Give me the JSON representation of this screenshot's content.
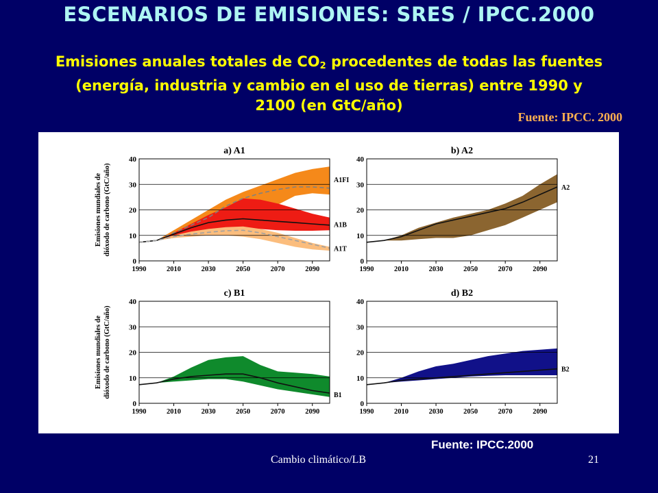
{
  "slide": {
    "title": "ESCENARIOS DE EMISIONES: SRES / IPCC.2000",
    "subtitle_pre": "Emisiones anuales totales de CO",
    "subtitle_sub": "2",
    "subtitle_post": " procedentes de todas las fuentes (energía, industria y cambio en el uso de tierras) entre 1990 y 2100 (en GtC/año)",
    "source_top": "Fuente: IPCC. 2000",
    "source_bottom": "Fuente: IPCC.2000",
    "footer": "Cambio climático/LB",
    "page_number": "21"
  },
  "colors": {
    "background": "#000066",
    "title": "#aef5f3",
    "subtitle": "#ffff00",
    "source_top": "#ffb050",
    "A1FI": "#f5891a",
    "A1B": "#ee1c14",
    "A1T": "#fbbd7d",
    "A2": "#8b6530",
    "B1": "#0f8a2c",
    "B2": "#111189"
  },
  "chart_data": [
    {
      "type": "area",
      "title": "a) A1",
      "ylabel": "Emisiones mundiales de dióxodo de carbono (GtC/año)",
      "xlim": [
        1990,
        2100
      ],
      "ylim": [
        0,
        40
      ],
      "x_ticks": [
        "1990",
        "2010",
        "2030",
        "2050",
        "2070",
        "2090"
      ],
      "y_ticks": [
        "0",
        "10",
        "20",
        "30",
        "40"
      ],
      "grid": "horizontal",
      "series": [
        {
          "name": "A1FI",
          "color": "#f5891a",
          "x": [
            1990,
            2000,
            2010,
            2020,
            2030,
            2040,
            2050,
            2060,
            2070,
            2080,
            2090,
            2100
          ],
          "upper": [
            7.3,
            8,
            12,
            16,
            20,
            24,
            27,
            29.5,
            32,
            34.5,
            36,
            37
          ],
          "lower": [
            7.3,
            8,
            9,
            10,
            11.5,
            13,
            14,
            18,
            22,
            25.5,
            26.5,
            26
          ],
          "marker": [
            7.3,
            8,
            11,
            14,
            17,
            21.5,
            24.5,
            26.5,
            28,
            29,
            29,
            28.5
          ]
        },
        {
          "name": "A1B",
          "color": "#ee1c14",
          "x": [
            1990,
            2000,
            2010,
            2020,
            2030,
            2040,
            2050,
            2060,
            2070,
            2080,
            2090,
            2100
          ],
          "upper": [
            7.3,
            8,
            11,
            14.5,
            18,
            21,
            24.5,
            24,
            22.5,
            20.5,
            18.5,
            17
          ],
          "lower": [
            7.3,
            8,
            10,
            11.5,
            12.5,
            13,
            13,
            12.5,
            12,
            11.8,
            11.8,
            12
          ],
          "marker": [
            7.3,
            8,
            10.5,
            13,
            15,
            16,
            16.5,
            16,
            15.5,
            15,
            14.5,
            14
          ]
        },
        {
          "name": "A1T",
          "color": "#fbbd7d",
          "x": [
            1990,
            2000,
            2010,
            2020,
            2030,
            2040,
            2050,
            2060,
            2070,
            2080,
            2090,
            2100
          ],
          "upper": [
            7.3,
            8,
            10,
            11.5,
            12.5,
            13.2,
            13.5,
            12.5,
            11,
            9,
            7,
            5.5
          ],
          "lower": [
            7.3,
            8,
            9,
            9.5,
            10,
            10,
            9.5,
            8.5,
            7,
            5.5,
            4.5,
            4
          ],
          "marker": [
            7.3,
            8,
            9.5,
            10.5,
            11.2,
            11.8,
            12,
            11,
            9.5,
            8,
            6.5,
            5
          ]
        }
      ]
    },
    {
      "type": "area",
      "title": "b) A2",
      "xlim": [
        1990,
        2100
      ],
      "ylim": [
        0,
        40
      ],
      "x_ticks": [
        "1990",
        "2010",
        "2030",
        "2050",
        "2070",
        "2090"
      ],
      "y_ticks": [
        "0",
        "10",
        "20",
        "30",
        "40"
      ],
      "grid": "horizontal",
      "series": [
        {
          "name": "A2",
          "color": "#8b6530",
          "x": [
            1990,
            2000,
            2010,
            2020,
            2030,
            2040,
            2050,
            2060,
            2070,
            2080,
            2090,
            2100
          ],
          "upper": [
            7.3,
            8,
            10,
            13,
            15,
            17,
            18.5,
            20,
            22.5,
            25.5,
            30,
            34
          ],
          "lower": [
            7.3,
            8,
            8,
            8.5,
            9,
            9,
            10,
            12,
            14,
            17,
            20,
            23
          ],
          "mean": [
            7.3,
            8,
            9.5,
            12,
            14.5,
            16,
            17.5,
            19,
            20.5,
            23,
            26,
            29
          ]
        }
      ]
    },
    {
      "type": "area",
      "title": "c) B1",
      "ylabel": "Emisiones mundiales de dióxodo de carbono (GtC/año)",
      "xlim": [
        1990,
        2100
      ],
      "ylim": [
        0,
        40
      ],
      "x_ticks": [
        "1990",
        "2010",
        "2030",
        "2050",
        "2070",
        "2090"
      ],
      "y_ticks": [
        "0",
        "10",
        "20",
        "30",
        "40"
      ],
      "grid": "horizontal",
      "series": [
        {
          "name": "B1",
          "color": "#0f8a2c",
          "x": [
            1990,
            2000,
            2010,
            2020,
            2030,
            2040,
            2050,
            2060,
            2070,
            2080,
            2090,
            2100
          ],
          "upper": [
            7.3,
            8,
            10.5,
            14,
            17,
            18,
            18.5,
            15,
            12.5,
            12,
            11.5,
            10.5
          ],
          "lower": [
            7.3,
            8,
            8.5,
            9,
            9.5,
            9.5,
            8.5,
            7,
            5.5,
            4.5,
            3.5,
            2.5
          ],
          "mean": [
            7.3,
            8,
            9.5,
            10.5,
            11,
            11.5,
            11.5,
            10,
            8,
            6.5,
            5,
            4
          ]
        }
      ]
    },
    {
      "type": "area",
      "title": "d) B2",
      "xlim": [
        1990,
        2100
      ],
      "ylim": [
        0,
        40
      ],
      "x_ticks": [
        "1990",
        "2010",
        "2030",
        "2050",
        "2070",
        "2090"
      ],
      "y_ticks": [
        "0",
        "10",
        "20",
        "30",
        "40"
      ],
      "grid": "horizontal",
      "series": [
        {
          "name": "B2",
          "color": "#111189",
          "x": [
            1990,
            2000,
            2010,
            2020,
            2030,
            2040,
            2050,
            2060,
            2070,
            2080,
            2090,
            2100
          ],
          "upper": [
            7.3,
            8,
            10,
            12.5,
            14.5,
            15.5,
            17,
            18.5,
            19.5,
            20.5,
            21,
            21.5
          ],
          "lower": [
            7.3,
            8,
            8.5,
            9,
            9.5,
            10,
            10.5,
            10.8,
            11,
            11,
            11,
            11
          ],
          "mean": [
            7.3,
            8,
            9,
            9.5,
            10,
            10.5,
            11,
            11.5,
            12,
            12.5,
            13,
            13.5
          ]
        }
      ]
    }
  ]
}
